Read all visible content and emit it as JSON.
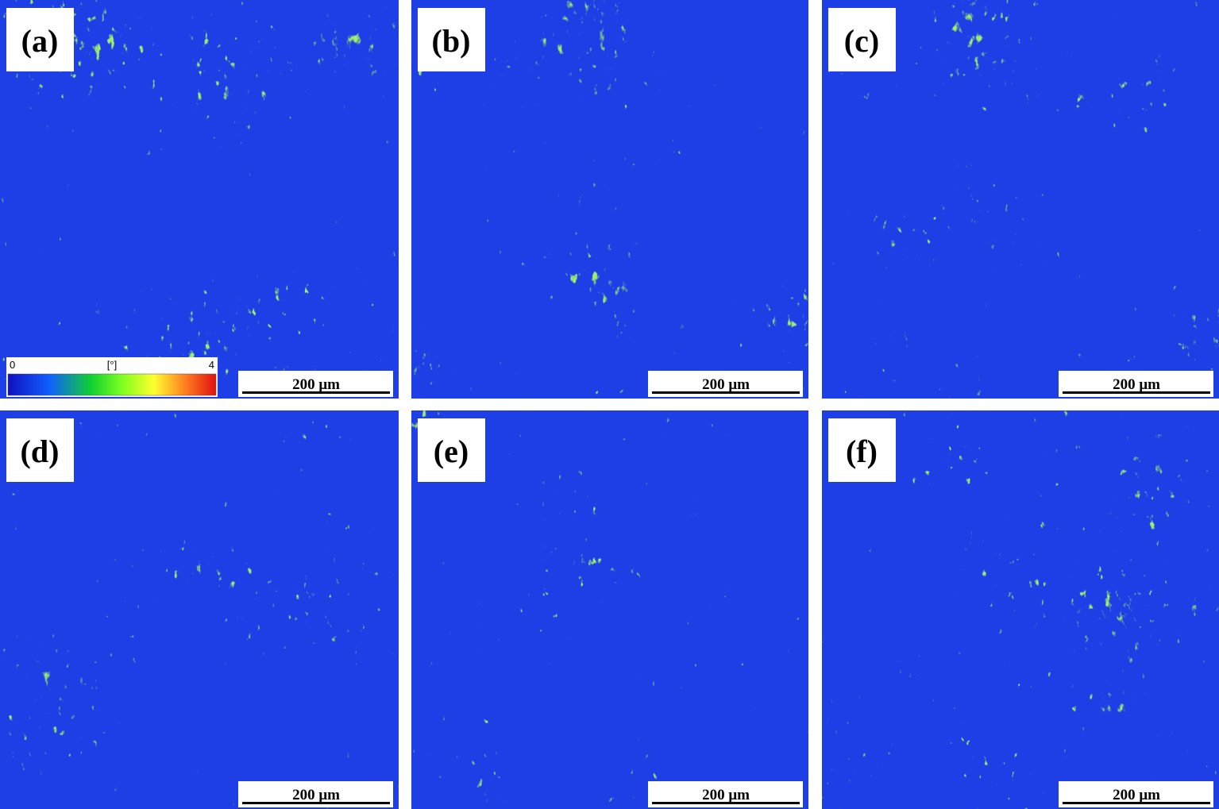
{
  "panels": [
    {
      "label": "(a)",
      "scale_bar": "200 μm"
    },
    {
      "label": "(b)",
      "scale_bar": "200 μm"
    },
    {
      "label": "(c)",
      "scale_bar": "200 μm"
    },
    {
      "label": "(d)",
      "scale_bar": "200 μm"
    },
    {
      "label": "(e)",
      "scale_bar": "200 μm"
    },
    {
      "label": "(f)",
      "scale_bar": "200 μm"
    }
  ],
  "colorbar": {
    "min_label": 0,
    "unit": "[°]",
    "max_label": 4
  }
}
